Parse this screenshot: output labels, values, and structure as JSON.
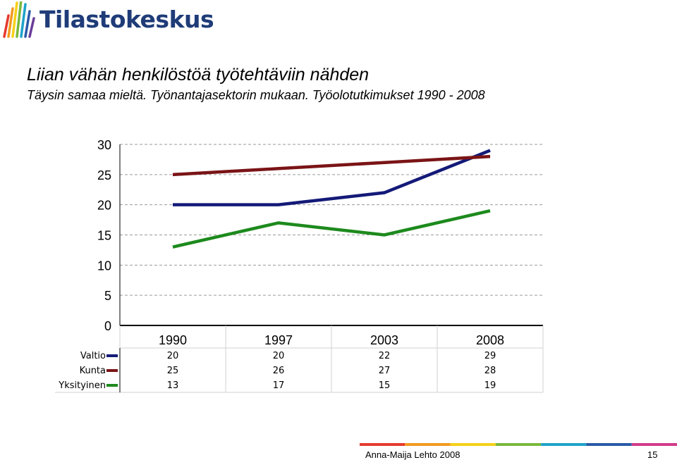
{
  "header": {
    "logo_name": "Tilastokeskus",
    "logo_colors": [
      "#e63a2e",
      "#f29a1f",
      "#f5d018",
      "#7ab83c",
      "#1fa3c9",
      "#2a5aa8",
      "#6a3d98"
    ],
    "brand_color": "#1f3c78"
  },
  "slide": {
    "title": "Liian vähän henkilöstöä työtehtäviin nähden",
    "subtitle": "Täysin samaa mieltä. Työnantajasektorin mukaan. Työolotutkimukset 1990 - 2008"
  },
  "chart_data": {
    "type": "line",
    "title": "",
    "xlabel": "",
    "ylabel": "",
    "categories": [
      "1990",
      "1997",
      "2003",
      "2008"
    ],
    "ylim": [
      0,
      30
    ],
    "yticks": [
      "0",
      "5",
      "10",
      "15",
      "20",
      "25",
      "30"
    ],
    "grid": true,
    "series": [
      {
        "name": "Valtio",
        "color": "#141a78",
        "values": [
          20,
          20,
          22,
          29
        ],
        "labels": [
          "20",
          "20",
          "22",
          "29"
        ]
      },
      {
        "name": "Kunta",
        "color": "#7a1416",
        "values": [
          25,
          26,
          27,
          28
        ],
        "labels": [
          "25",
          "26",
          "27",
          "28"
        ]
      },
      {
        "name": "Yksityinen",
        "color": "#1d8a1d",
        "values": [
          13,
          17,
          15,
          19
        ],
        "labels": [
          "13",
          "17",
          "15",
          "19"
        ]
      }
    ],
    "legend": "data-table-left"
  },
  "footer": {
    "author": "Anna-Maija Lehto 2008",
    "page": "15",
    "bar_colors": [
      "#e63a2e",
      "#f29a1f",
      "#f5d018",
      "#7ab83c",
      "#1fa3c9",
      "#2a5aa8",
      "#d13a8a"
    ]
  }
}
